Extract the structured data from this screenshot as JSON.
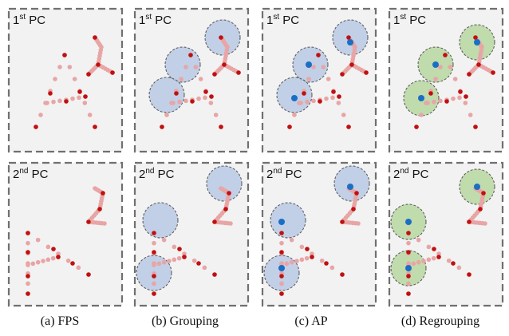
{
  "panels": [
    {
      "label": "1st PC"
    },
    {
      "label": "1st PC"
    },
    {
      "label": "1st PC"
    },
    {
      "label": "1st PC"
    },
    {
      "label": "2nd PC"
    },
    {
      "label": "2nd PC"
    },
    {
      "label": "2nd PC"
    },
    {
      "label": "2nd PC"
    }
  ],
  "captions": [
    "(a) FPS",
    "(b) Grouping",
    "(c) AP",
    "(d) Regrouping"
  ],
  "colors": {
    "panel_bg": "#f2f2f2",
    "border": "#707070",
    "point": "#e8a5a5",
    "sampled_point": "#c01010",
    "anchor_point": "#1a6fc4",
    "group_circle": "#b4c6e3",
    "regroup_circle": "#b3d49a"
  }
}
